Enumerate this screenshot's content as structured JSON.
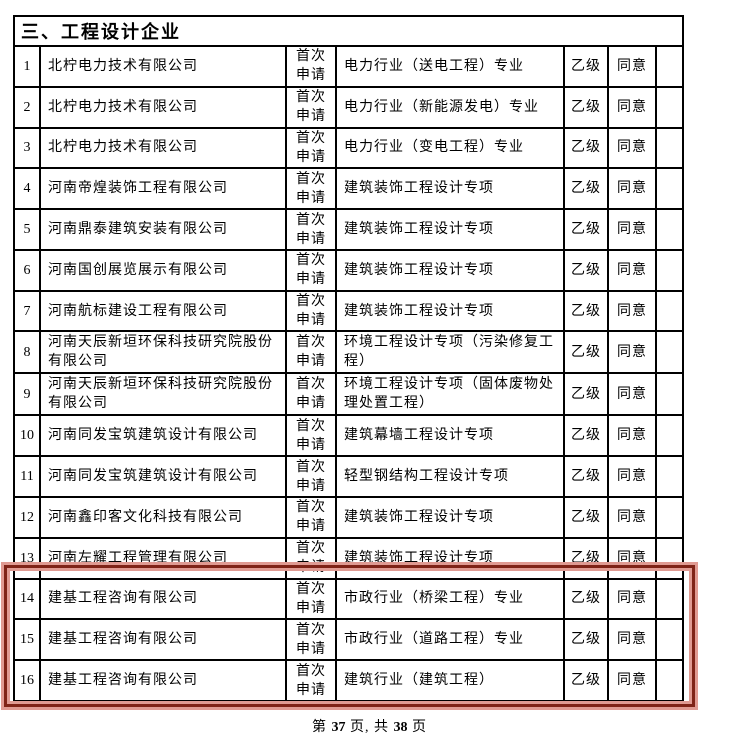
{
  "page": {
    "section_title": "三、工程设计企业",
    "footer": {
      "prefix": "第 ",
      "current_page": "37",
      "middle": " 页, 共 ",
      "total_pages": "38",
      "suffix": " 页"
    }
  },
  "table": {
    "rows": [
      {
        "no": "1",
        "company": "北柠电力技术有限公司",
        "application_type": "首次申请",
        "specialty": "电力行业（送电工程）专业",
        "grade": "乙级",
        "opinion": "同意"
      },
      {
        "no": "2",
        "company": "北柠电力技术有限公司",
        "application_type": "首次申请",
        "specialty": "电力行业（新能源发电）专业",
        "grade": "乙级",
        "opinion": "同意"
      },
      {
        "no": "3",
        "company": "北柠电力技术有限公司",
        "application_type": "首次申请",
        "specialty": "电力行业（变电工程）专业",
        "grade": "乙级",
        "opinion": "同意"
      },
      {
        "no": "4",
        "company": "河南帝煌装饰工程有限公司",
        "application_type": "首次申请",
        "specialty": "建筑装饰工程设计专项",
        "grade": "乙级",
        "opinion": "同意"
      },
      {
        "no": "5",
        "company": "河南鼎泰建筑安装有限公司",
        "application_type": "首次申请",
        "specialty": "建筑装饰工程设计专项",
        "grade": "乙级",
        "opinion": "同意"
      },
      {
        "no": "6",
        "company": "河南国创展览展示有限公司",
        "application_type": "首次申请",
        "specialty": "建筑装饰工程设计专项",
        "grade": "乙级",
        "opinion": "同意"
      },
      {
        "no": "7",
        "company": "河南航标建设工程有限公司",
        "application_type": "首次申请",
        "specialty": "建筑装饰工程设计专项",
        "grade": "乙级",
        "opinion": "同意"
      },
      {
        "no": "8",
        "company": "河南天辰新垣环保科技研究院股份有限公司",
        "application_type": "首次申请",
        "specialty": "环境工程设计专项（污染修复工程）",
        "grade": "乙级",
        "opinion": "同意"
      },
      {
        "no": "9",
        "company": "河南天辰新垣环保科技研究院股份有限公司",
        "application_type": "首次申请",
        "specialty": "环境工程设计专项（固体废物处理处置工程）",
        "grade": "乙级",
        "opinion": "同意"
      },
      {
        "no": "10",
        "company": "河南同发宝筑建筑设计有限公司",
        "application_type": "首次申请",
        "specialty": "建筑幕墙工程设计专项",
        "grade": "乙级",
        "opinion": "同意"
      },
      {
        "no": "11",
        "company": "河南同发宝筑建筑设计有限公司",
        "application_type": "首次申请",
        "specialty": "轻型钢结构工程设计专项",
        "grade": "乙级",
        "opinion": "同意"
      },
      {
        "no": "12",
        "company": "河南鑫印客文化科技有限公司",
        "application_type": "首次申请",
        "specialty": "建筑装饰工程设计专项",
        "grade": "乙级",
        "opinion": "同意"
      },
      {
        "no": "13",
        "company": "河南左耀工程管理有限公司",
        "application_type": "首次申请",
        "specialty": "建筑装饰工程设计专项",
        "grade": "乙级",
        "opinion": "同意"
      },
      {
        "no": "14",
        "company": "建基工程咨询有限公司",
        "application_type": "首次申请",
        "specialty": "市政行业（桥梁工程）专业",
        "grade": "乙级",
        "opinion": "同意"
      },
      {
        "no": "15",
        "company": "建基工程咨询有限公司",
        "application_type": "首次申请",
        "specialty": "市政行业（道路工程）专业",
        "grade": "乙级",
        "opinion": "同意"
      },
      {
        "no": "16",
        "company": "建基工程咨询有限公司",
        "application_type": "首次申请",
        "specialty": "建筑行业（建筑工程）",
        "grade": "乙级",
        "opinion": "同意"
      }
    ]
  },
  "highlight": {
    "highlighted_row_numbers": [
      "14",
      "15",
      "16"
    ],
    "border_color": "#7f2317",
    "halo_color": "#e09a92"
  }
}
